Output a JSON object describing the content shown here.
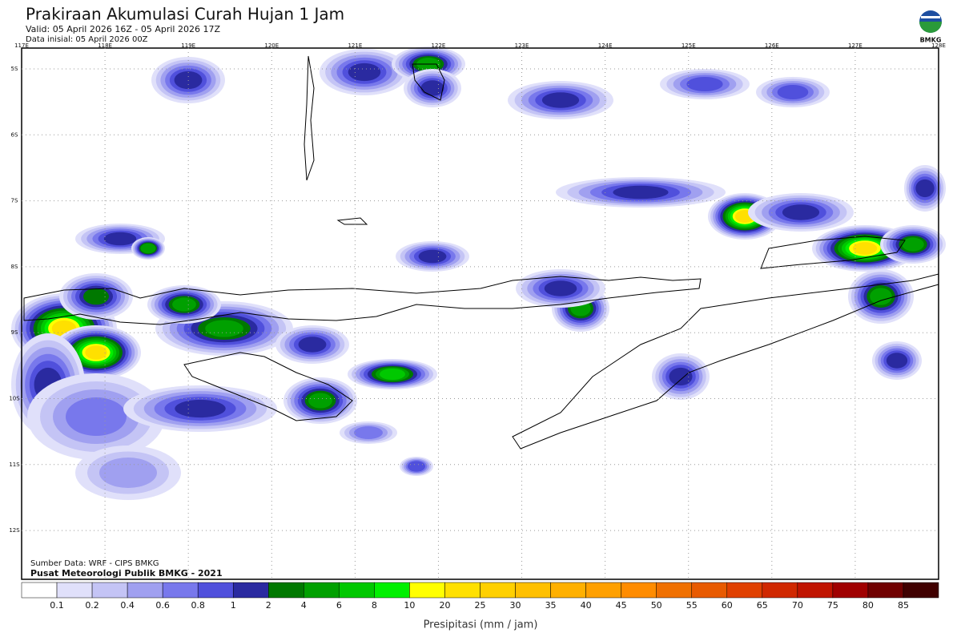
{
  "header": {
    "title": "Prakiraan Akumulasi Curah Hujan 1 Jam",
    "valid": "Valid: 05 April 2026 16Z - 05 April 2026 17Z",
    "initial": "Data inisial: 05 April 2026 00Z",
    "logo": "BMKG"
  },
  "map": {
    "lon_labels": [
      "117E",
      "118E",
      "119E",
      "120E",
      "121E",
      "122E",
      "123E",
      "124E",
      "125E",
      "126E",
      "127E",
      "128E"
    ],
    "lat_labels": [
      "5S",
      "6S",
      "7S",
      "8S",
      "9S",
      "10S",
      "11S",
      "12S"
    ],
    "source": "Sumber Data: WRF - CIPS BMKG",
    "credit": "Pusat Meteorologi Publik BMKG - 2021"
  },
  "colorbar": {
    "labels": [
      "0.1",
      "0.2",
      "0.4",
      "0.6",
      "0.8",
      "1",
      "2",
      "4",
      "6",
      "8",
      "10",
      "20",
      "25",
      "30",
      "35",
      "40",
      "45",
      "50",
      "55",
      "60",
      "65",
      "70",
      "75",
      "80",
      "85"
    ],
    "colors": [
      "#ffffff",
      "#e0e0fa",
      "#c4c4f5",
      "#a0a0f0",
      "#7878ec",
      "#5050dc",
      "#2a2aa0",
      "#007800",
      "#00a000",
      "#00c800",
      "#00f000",
      "#ffff00",
      "#ffe000",
      "#ffd000",
      "#ffc000",
      "#ffb000",
      "#ffa000",
      "#ff8c00",
      "#f07000",
      "#e85a00",
      "#e04000",
      "#d02800",
      "#c01400",
      "#a00000",
      "#700000",
      "#400000"
    ],
    "title": "Presipitasi (mm / jam)"
  }
}
